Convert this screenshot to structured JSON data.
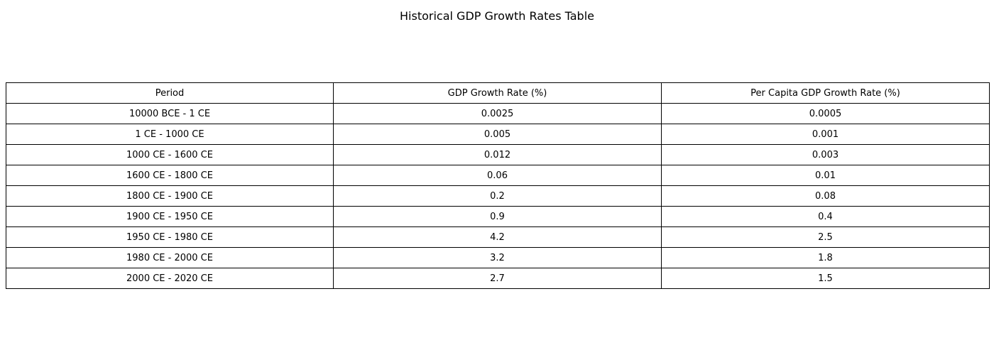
{
  "chart_data": {
    "type": "table",
    "title": "Historical GDP Growth Rates Table",
    "columns": [
      "Period",
      "GDP Growth Rate (%)",
      "Per Capita GDP Growth Rate (%)"
    ],
    "rows": [
      [
        "10000 BCE - 1 CE",
        "0.0025",
        "0.0005"
      ],
      [
        "1 CE - 1000 CE",
        "0.005",
        "0.001"
      ],
      [
        "1000 CE - 1600 CE",
        "0.012",
        "0.003"
      ],
      [
        "1600 CE - 1800 CE",
        "0.06",
        "0.01"
      ],
      [
        "1800 CE - 1900 CE",
        "0.2",
        "0.08"
      ],
      [
        "1900 CE - 1950 CE",
        "0.9",
        "0.4"
      ],
      [
        "1950 CE - 1980 CE",
        "4.2",
        "2.5"
      ],
      [
        "1980 CE - 2000 CE",
        "3.2",
        "1.8"
      ],
      [
        "2000 CE - 2020 CE",
        "2.7",
        "1.5"
      ]
    ]
  }
}
